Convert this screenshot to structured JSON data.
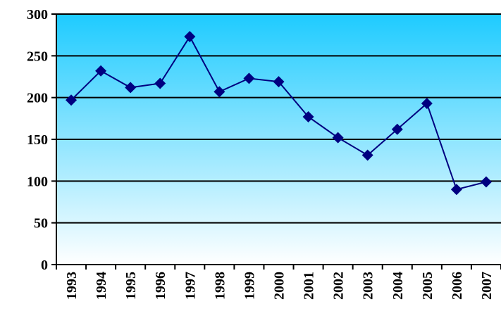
{
  "chart_data": {
    "type": "line",
    "categories": [
      "1993",
      "1994",
      "1995",
      "1996",
      "1997",
      "1998",
      "1999",
      "2000",
      "2001",
      "2002",
      "2003",
      "2004",
      "2005",
      "2006",
      "2007"
    ],
    "series": [
      {
        "values": [
          197,
          232,
          212,
          217,
          273,
          207,
          223,
          219,
          177,
          152,
          131,
          162,
          193,
          90,
          99
        ]
      }
    ],
    "ylim": [
      0,
      300
    ],
    "yticks": [
      0,
      50,
      100,
      150,
      200,
      250,
      300
    ],
    "title": "",
    "xlabel": "",
    "ylabel": "",
    "grid": true,
    "legend": "none",
    "colors": {
      "line": "#000080",
      "marker": "#000080",
      "plot_top": "#1ecbff",
      "plot_bottom": "#ffffff"
    },
    "marker_shape": "diamond"
  }
}
